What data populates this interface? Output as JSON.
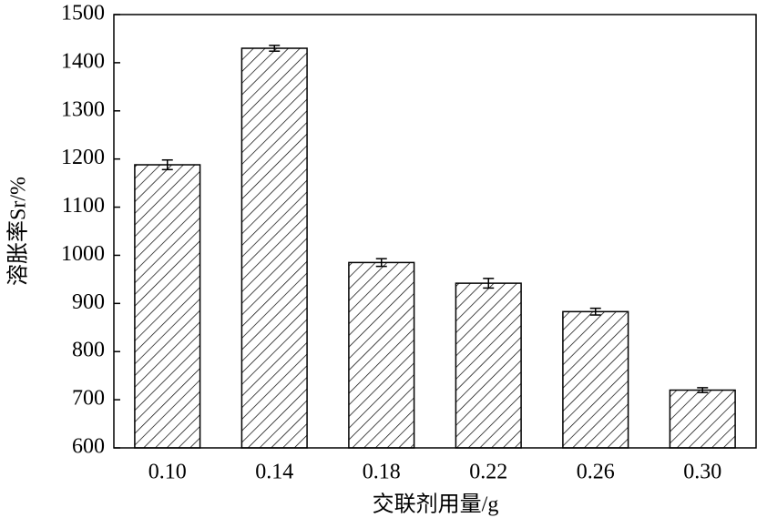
{
  "chart_data": {
    "type": "bar",
    "xlabel": "交联剂用量/g",
    "ylabel": "溶胀率Sr/%",
    "categories": [
      "0.10",
      "0.14",
      "0.18",
      "0.22",
      "0.26",
      "0.30"
    ],
    "values": [
      1188,
      1430,
      985,
      942,
      883,
      720
    ],
    "errors": [
      10,
      6,
      8,
      10,
      7,
      5
    ],
    "color": "#000000",
    "ylim": [
      600,
      1500
    ],
    "yticks": [
      600,
      700,
      800,
      900,
      1000,
      1100,
      1200,
      1300,
      1400,
      1500
    ],
    "grid": false
  }
}
